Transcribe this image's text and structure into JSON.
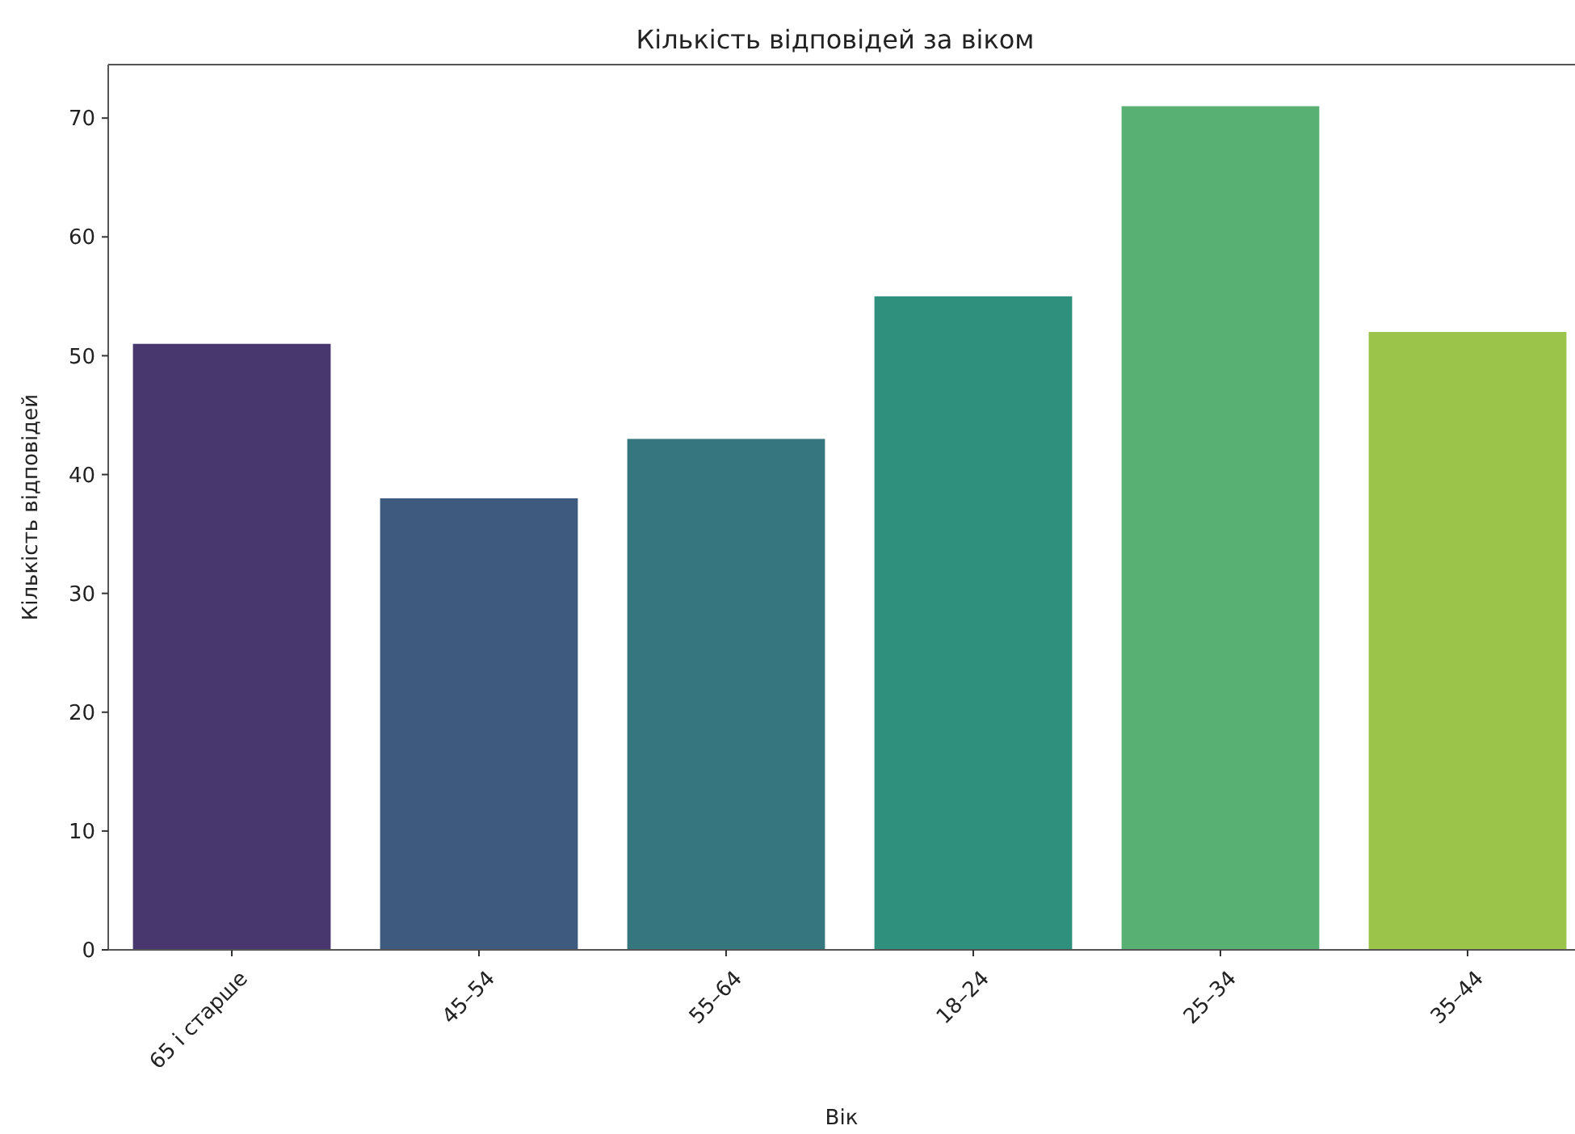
{
  "chart_data": {
    "type": "bar",
    "title": "Кількість відповідей за віком",
    "xlabel": "Вік",
    "ylabel": "Кількість відповідей",
    "categories": [
      "65 і старше",
      "45–54",
      "55–64",
      "18–24",
      "25–34",
      "35–44"
    ],
    "values": [
      51,
      38,
      43,
      55,
      71,
      52
    ],
    "colors": [
      "#48366f",
      "#3f5a7f",
      "#35767f",
      "#2f907e",
      "#58b073",
      "#9bc54a"
    ],
    "ylim": [
      0,
      74.5
    ],
    "yticks": [
      0,
      10,
      20,
      30,
      40,
      50,
      60,
      70
    ],
    "grid": false
  }
}
